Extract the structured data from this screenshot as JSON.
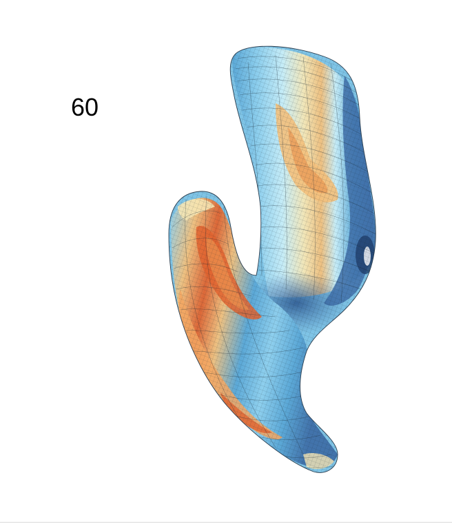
{
  "frame_label": "60",
  "colors": {
    "background": "#ffffff",
    "deep_blue": "#3f6fa8",
    "mid_blue": "#5aa7d6",
    "light_blue": "#8fd0ee",
    "pale_cyan": "#c9eef8",
    "cream": "#f7e7b5",
    "light_orange": "#f3c07c",
    "orange": "#ea8f4e",
    "deep_orange": "#e0632f",
    "mesh_line": "#1b2a35",
    "bottom_rule": "#d9d9d9"
  },
  "surface": {
    "description_name": "colored-mesh-surface",
    "colormap": "blue-orange-diverging"
  }
}
